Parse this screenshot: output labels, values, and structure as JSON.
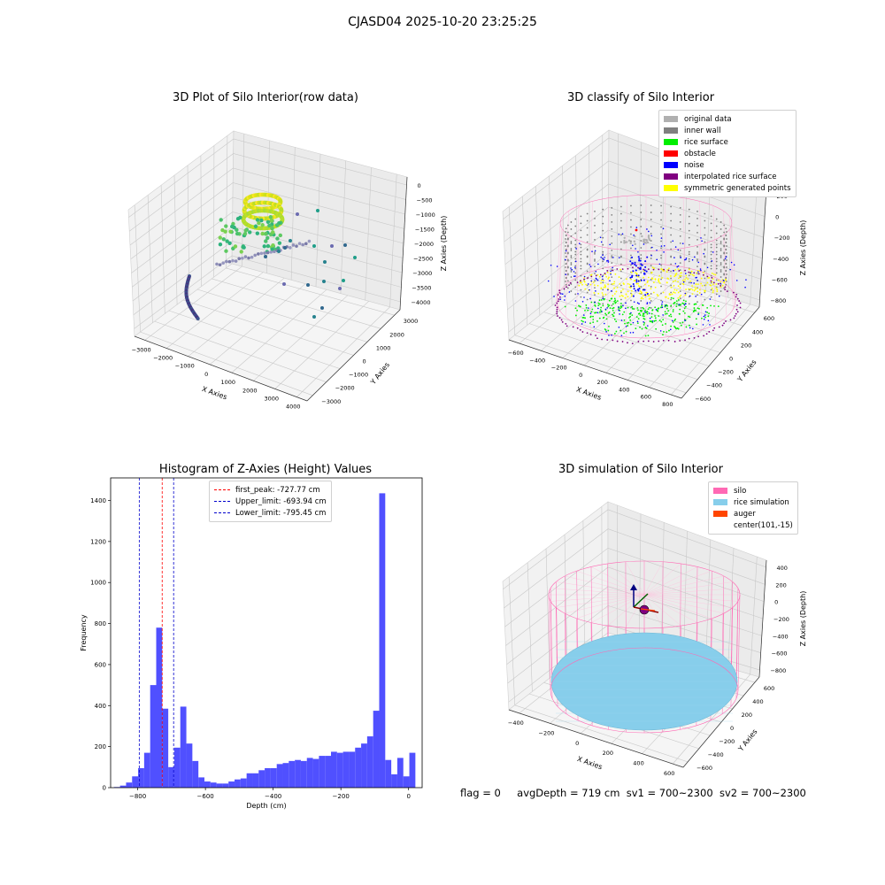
{
  "figure": {
    "suptitle": "CJASD04 2025-10-20 23:25:25",
    "status": {
      "flag": "flag = 0",
      "avg_depth": "avgDepth = 719 cm",
      "sv1": "sv1 = 700~2300",
      "sv2": "sv2 = 700~2300"
    }
  },
  "chart_data": [
    {
      "type": "scatter",
      "projection": "3d",
      "title": "3D Plot of Silo Interior(row data)",
      "xlabel": "X Axies",
      "ylabel": "Y Axies",
      "zlabel": "Z Axies (Depth)",
      "x_ticks": [
        "−3000",
        "−2000",
        "−1000",
        "0",
        "1000",
        "2000",
        "3000",
        "4000"
      ],
      "y_ticks": [
        "−3000",
        "−2000",
        "−1000",
        "0",
        "1000",
        "2000",
        "3000"
      ],
      "z_ticks": [
        "0",
        "−500",
        "−1000",
        "−1500",
        "−2000",
        "−2500",
        "−3000",
        "−3500",
        "−4000"
      ],
      "colormap": "viridis",
      "grid": true
    },
    {
      "type": "scatter",
      "projection": "3d",
      "title": "3D classify of Silo Interior",
      "xlabel": "X Axies",
      "ylabel": "Y Axies",
      "zlabel": "Z Axies (Depth)",
      "x_ticks": [
        "−600",
        "−400",
        "−200",
        "0",
        "200",
        "400",
        "600",
        "800"
      ],
      "y_ticks": [
        "−600",
        "−400",
        "−200",
        "0",
        "200",
        "400",
        "600"
      ],
      "z_ticks": [
        "200",
        "0",
        "−200",
        "−400",
        "−600",
        "−800"
      ],
      "legend_position": "top-right",
      "legend": [
        {
          "label": "original data",
          "color": "#b0b0b0"
        },
        {
          "label": "inner wall",
          "color": "#808080"
        },
        {
          "label": "rice surface",
          "color": "#00ee00"
        },
        {
          "label": "obstacle",
          "color": "#ff0000"
        },
        {
          "label": "noise",
          "color": "#0000ff"
        },
        {
          "label": "interpolated rice surface",
          "color": "#800080"
        },
        {
          "label": "symmetric generated points",
          "color": "#ffff00"
        }
      ],
      "grid": true
    },
    {
      "type": "bar",
      "title": "Histogram of Z-Axies (Height) Values",
      "xlabel": "Depth (cm)",
      "ylabel": "Frequency",
      "xlim": [
        -880,
        40
      ],
      "ylim": [
        0,
        1510
      ],
      "x_ticks": [
        -800,
        -600,
        -400,
        -200,
        0
      ],
      "x_tick_labels": [
        "−800",
        "−600",
        "−400",
        "−200",
        "0"
      ],
      "y_ticks": [
        0,
        200,
        400,
        600,
        800,
        1000,
        1200,
        1400
      ],
      "bar_color": "#5050ff",
      "bin_start": -870,
      "bin_width": 17.8,
      "values": [
        3,
        10,
        25,
        55,
        95,
        170,
        500,
        780,
        385,
        100,
        195,
        395,
        215,
        130,
        50,
        30,
        25,
        20,
        20,
        30,
        40,
        45,
        70,
        70,
        85,
        95,
        95,
        115,
        120,
        130,
        135,
        130,
        145,
        140,
        155,
        155,
        175,
        170,
        175,
        175,
        195,
        215,
        250,
        375,
        1435,
        135,
        65,
        145,
        55,
        170
      ],
      "vlines": [
        {
          "label": "first_peak: -727.77 cm",
          "x": -727.77,
          "color": "#ff0000"
        },
        {
          "label": "Upper_limit: -693.94 cm",
          "x": -693.94,
          "color": "#0000cc"
        },
        {
          "label": "Lower_limit: -795.45 cm",
          "x": -795.45,
          "color": "#0000cc"
        }
      ],
      "legend_position": "top-center"
    },
    {
      "type": "scatter",
      "projection": "3d",
      "title": "3D simulation of Silo Interior",
      "xlabel": "X Axies",
      "ylabel": "Y Axies",
      "zlabel": "Z Axies (Depth)",
      "x_ticks": [
        "−400",
        "−200",
        "0",
        "200",
        "400",
        "600"
      ],
      "y_ticks": [
        "−600",
        "−400",
        "−200",
        "0",
        "200",
        "400",
        "600"
      ],
      "z_ticks": [
        "400",
        "200",
        "0",
        "−200",
        "−400",
        "−600",
        "−800"
      ],
      "legend_position": "top-right",
      "legend": [
        {
          "label": "silo",
          "color": "#ff69b4"
        },
        {
          "label": "rice simulation",
          "color": "#87ceeb"
        },
        {
          "label": "auger",
          "color": "#ff4500"
        },
        {
          "label": "center(101,-15)",
          "color": "#ffffff"
        }
      ],
      "grid": true
    }
  ]
}
